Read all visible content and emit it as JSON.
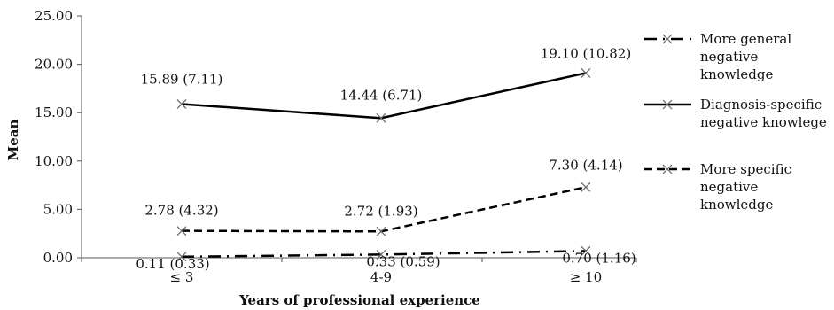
{
  "chart_data": {
    "type": "line",
    "title": "",
    "xlabel": "Years of professional experience",
    "ylabel": "Mean",
    "categories": [
      "≤ 3",
      "4-9",
      "≥ 10"
    ],
    "ylim": [
      0,
      25
    ],
    "yticks": [
      "0.00",
      "5.00",
      "10.00",
      "15.00",
      "20.00",
      "25.00"
    ],
    "grid": false,
    "legend_position": "right",
    "series": [
      {
        "name": "More general negative knowledge",
        "legend_lines": [
          "More general",
          "negative",
          "knowledge"
        ],
        "values": [
          0.11,
          0.33,
          0.7
        ],
        "labels": [
          "0.11 (0.33)",
          "0.33 (0.59)",
          "0.70 (1.16)"
        ],
        "style": "dash-dot",
        "color": "#000000"
      },
      {
        "name": "Diagnosis-specific negative knowlege",
        "legend_lines": [
          "Diagnosis-specific",
          "negative knowlege"
        ],
        "values": [
          15.89,
          14.44,
          19.1
        ],
        "labels": [
          "15.89 (7.11)",
          "14.44 (6.71)",
          "19.10 (10.82)"
        ],
        "style": "solid",
        "color": "#000000"
      },
      {
        "name": "More specific negative knowledge",
        "legend_lines": [
          "More specific",
          "negative",
          "knowledge"
        ],
        "values": [
          2.78,
          2.72,
          7.3
        ],
        "labels": [
          "2.78 (4.32)",
          "2.72 (1.93)",
          "7.30 (4.14)"
        ],
        "style": "dashed",
        "color": "#000000"
      }
    ]
  }
}
